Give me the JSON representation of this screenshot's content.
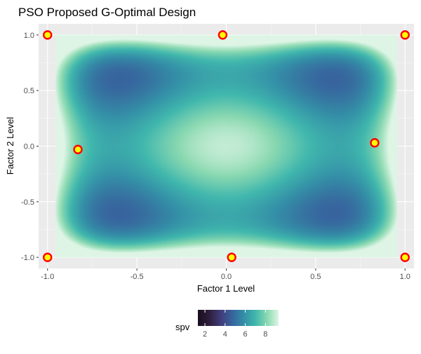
{
  "chart_data": {
    "type": "heatmap",
    "title": "PSO Proposed G-Optimal Design",
    "xlabel": "Factor 1 Level",
    "ylabel": "Factor 2 Level",
    "xlim": [
      -1.05,
      1.05
    ],
    "ylim": [
      -1.1,
      1.1
    ],
    "x_ticks": [
      -1.0,
      -0.5,
      0.0,
      0.5,
      1.0
    ],
    "x_tick_labels": [
      "-1.0",
      "-0.5",
      "0.0",
      "0.5",
      "1.0"
    ],
    "y_ticks": [
      -1.0,
      -0.5,
      0.0,
      0.5,
      1.0
    ],
    "y_tick_labels": [
      "-1.0",
      "-0.5",
      "0.0",
      "0.5",
      "1.0"
    ],
    "grid": true,
    "fill_variable": "spv",
    "fill_range": [
      1.3,
      9.3
    ],
    "legend": {
      "title": "spv",
      "position": "bottom",
      "ticks": [
        2,
        4,
        6,
        8
      ],
      "tick_labels": [
        "2",
        "4",
        "6",
        "8"
      ]
    },
    "surface_description": "scaled prediction variance over [-1,1]x[-1,1]; high at center and corners, low near (+/-0.65, +/-0.7)",
    "design_points": [
      {
        "x": -1.0,
        "y": 1.0
      },
      {
        "x": -0.02,
        "y": 1.0
      },
      {
        "x": 1.0,
        "y": 1.0
      },
      {
        "x": -0.83,
        "y": -0.03
      },
      {
        "x": 0.83,
        "y": 0.03
      },
      {
        "x": -1.0,
        "y": -1.0
      },
      {
        "x": 0.03,
        "y": -1.0
      },
      {
        "x": 1.0,
        "y": -1.0
      }
    ],
    "colors": {
      "panel_bg": "#EBEBEB",
      "grid_major": "#FFFFFF",
      "point_fill": "#FFFF00",
      "point_stroke": "#FF0000",
      "scale": [
        "#1A0D1F",
        "#2E1E3B",
        "#413D7B",
        "#37659E",
        "#348FA7",
        "#40B7AD",
        "#8AD9B1",
        "#DEF5E5"
      ]
    }
  }
}
